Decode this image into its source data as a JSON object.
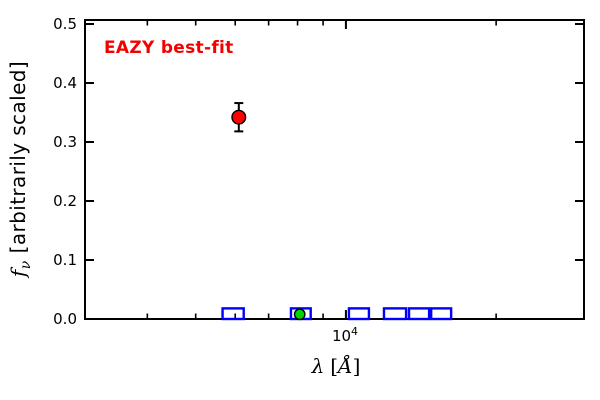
{
  "chart_data": {
    "type": "scatter",
    "title": "",
    "annotation": {
      "text": "EAZY best-fit",
      "color": "#f40000"
    },
    "xlabel": "λ [Å]",
    "xlabel_parts": {
      "math": "λ",
      "open": "[",
      "unit": "Å",
      "close": "]"
    },
    "ylabel": "fν [arbitrarily scaled]",
    "ylabel_parts": {
      "math": "f",
      "sub": "ν",
      "rest": "[arbitrarily scaled]"
    },
    "x_scale": "log",
    "xlim": [
      3000,
      30000
    ],
    "ylim": [
      0,
      0.5
    ],
    "grid": false,
    "legend": "none",
    "x_major_ticks": [
      {
        "value": 10000,
        "label_base": "10",
        "label_exp": "4"
      }
    ],
    "x_minor_ticks": [
      4000,
      5000,
      6000,
      7000,
      8000,
      9000,
      20000
    ],
    "y_ticks": [
      {
        "value": 0.0,
        "label": "0.0"
      },
      {
        "value": 0.1,
        "label": "0.1"
      },
      {
        "value": 0.2,
        "label": "0.2"
      },
      {
        "value": 0.3,
        "label": "0.3"
      },
      {
        "value": 0.4,
        "label": "0.4"
      },
      {
        "value": 0.5,
        "label": "0.5"
      }
    ],
    "series": [
      {
        "name": "observed-photometry",
        "marker": "filled-circle-with-errorbar",
        "fill": "#ff0000",
        "edge": "#000000",
        "points": [
          {
            "x": 6100,
            "y": 0.342,
            "yerr": 0.024
          }
        ]
      },
      {
        "name": "model-photometry",
        "marker": "filled-circle",
        "fill": "#00d400",
        "edge": "#000000",
        "points": [
          {
            "x": 8080,
            "y": 0.008
          }
        ]
      },
      {
        "name": "filter-passbands",
        "marker": "open-rectangle",
        "edge": "#0000ff",
        "boxes": [
          {
            "x_min": 5660,
            "x_max": 6240,
            "height": 0.018
          },
          {
            "x_min": 7760,
            "x_max": 8500,
            "height": 0.018
          },
          {
            "x_min": 10140,
            "x_max": 11120,
            "height": 0.018
          },
          {
            "x_min": 11920,
            "x_max": 13200,
            "height": 0.018
          },
          {
            "x_min": 13380,
            "x_max": 14680,
            "height": 0.018
          },
          {
            "x_min": 14820,
            "x_max": 16250,
            "height": 0.018
          }
        ]
      }
    ],
    "colors": {
      "axis": "#000000",
      "background": "#ffffff"
    }
  }
}
